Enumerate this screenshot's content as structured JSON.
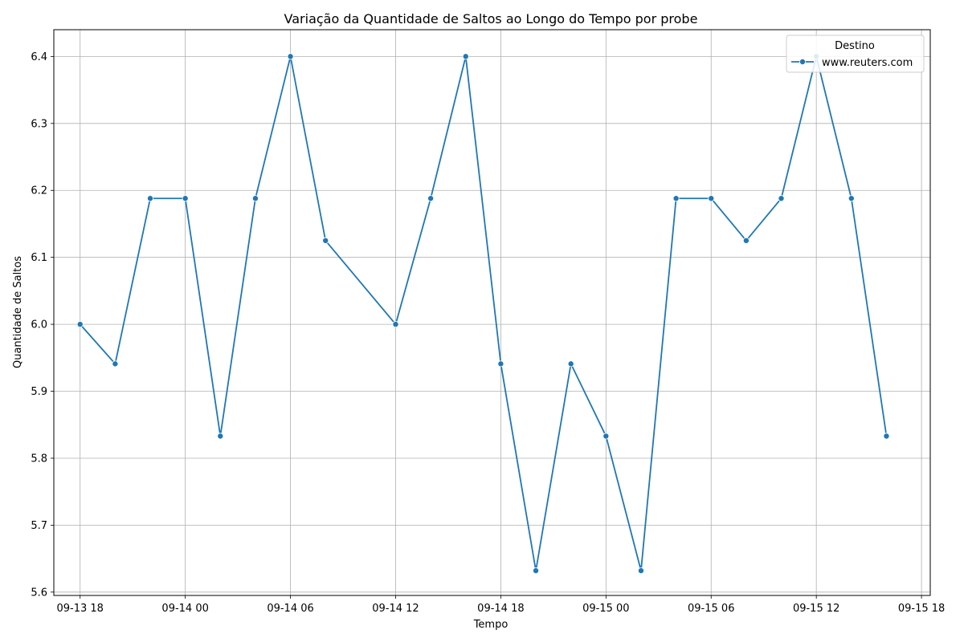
{
  "chart_data": {
    "type": "line",
    "title": "Variação da Quantidade de Saltos ao Longo do Tempo por probe",
    "xlabel": "Tempo",
    "ylabel": "Quantidade de Saltos",
    "xlim": [
      "2023-09-13T16:30",
      "2023-09-15T18:30"
    ],
    "ylim": [
      5.595,
      6.44
    ],
    "x_ticks": [
      {
        "value": "2023-09-13T18:00",
        "label": "09-13 18"
      },
      {
        "value": "2023-09-14T00:00",
        "label": "09-14 00"
      },
      {
        "value": "2023-09-14T06:00",
        "label": "09-14 06"
      },
      {
        "value": "2023-09-14T12:00",
        "label": "09-14 12"
      },
      {
        "value": "2023-09-14T18:00",
        "label": "09-14 18"
      },
      {
        "value": "2023-09-15T00:00",
        "label": "09-15 00"
      },
      {
        "value": "2023-09-15T06:00",
        "label": "09-15 06"
      },
      {
        "value": "2023-09-15T12:00",
        "label": "09-15 12"
      },
      {
        "value": "2023-09-15T18:00",
        "label": "09-15 18"
      }
    ],
    "y_ticks": [
      {
        "value": 5.6,
        "label": "5.6"
      },
      {
        "value": 5.7,
        "label": "5.7"
      },
      {
        "value": 5.8,
        "label": "5.8"
      },
      {
        "value": 5.9,
        "label": "5.9"
      },
      {
        "value": 6.0,
        "label": "6.0"
      },
      {
        "value": 6.1,
        "label": "6.1"
      },
      {
        "value": 6.2,
        "label": "6.2"
      },
      {
        "value": 6.3,
        "label": "6.3"
      },
      {
        "value": 6.4,
        "label": "6.4"
      }
    ],
    "grid": true,
    "legend": {
      "title": "Destino",
      "position": "top-right"
    },
    "series": [
      {
        "name": "www.reuters.com",
        "color": "#1f77b4",
        "marker": "circle",
        "points": [
          {
            "x": "2023-09-13T18:00",
            "y": 6.0
          },
          {
            "x": "2023-09-13T20:00",
            "y": 5.941
          },
          {
            "x": "2023-09-13T22:00",
            "y": 6.188
          },
          {
            "x": "2023-09-14T00:00",
            "y": 6.188
          },
          {
            "x": "2023-09-14T02:00",
            "y": 5.833
          },
          {
            "x": "2023-09-14T04:00",
            "y": 6.188
          },
          {
            "x": "2023-09-14T06:00",
            "y": 6.4
          },
          {
            "x": "2023-09-14T08:00",
            "y": 6.125
          },
          {
            "x": "2023-09-14T12:00",
            "y": 6.0
          },
          {
            "x": "2023-09-14T14:00",
            "y": 6.188
          },
          {
            "x": "2023-09-14T16:00",
            "y": 6.4
          },
          {
            "x": "2023-09-14T18:00",
            "y": 5.941
          },
          {
            "x": "2023-09-14T20:00",
            "y": 5.632
          },
          {
            "x": "2023-09-14T22:00",
            "y": 5.941
          },
          {
            "x": "2023-09-15T00:00",
            "y": 5.833
          },
          {
            "x": "2023-09-15T02:00",
            "y": 5.632
          },
          {
            "x": "2023-09-15T04:00",
            "y": 6.188
          },
          {
            "x": "2023-09-15T06:00",
            "y": 6.188
          },
          {
            "x": "2023-09-15T08:00",
            "y": 6.125
          },
          {
            "x": "2023-09-15T10:00",
            "y": 6.188
          },
          {
            "x": "2023-09-15T12:00",
            "y": 6.4
          },
          {
            "x": "2023-09-15T14:00",
            "y": 6.188
          },
          {
            "x": "2023-09-15T16:00",
            "y": 5.833
          }
        ]
      }
    ]
  }
}
